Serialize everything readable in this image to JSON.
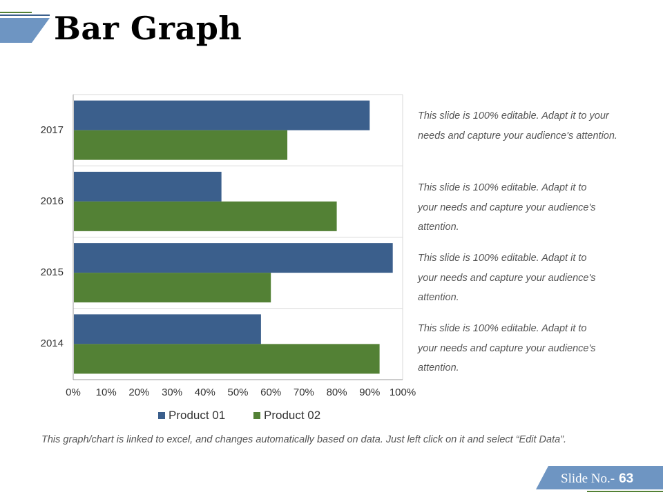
{
  "title": "Bar Graph",
  "colors": {
    "product01": "#3b5f8c",
    "product02": "#538135",
    "accent_bar": "#6e95c2"
  },
  "chart_data": {
    "type": "bar",
    "orientation": "horizontal",
    "categories": [
      "2014",
      "2015",
      "2016",
      "2017"
    ],
    "series": [
      {
        "name": "Product 01",
        "values": [
          57,
          97,
          45,
          90
        ]
      },
      {
        "name": "Product 02",
        "values": [
          93,
          60,
          80,
          65
        ]
      }
    ],
    "xlim": [
      0,
      100
    ],
    "xticks": [
      "0%",
      "10%",
      "20%",
      "30%",
      "40%",
      "50%",
      "60%",
      "70%",
      "80%",
      "90%",
      "100%"
    ],
    "legend": "bottom"
  },
  "descriptions": [
    {
      "lines": [
        "This slide is 100% editable. Adapt it to your",
        "needs and capture your audience's attention."
      ]
    },
    {
      "lines": [
        "This slide is 100% editable. Adapt it to",
        "your needs and capture your audience's",
        "attention."
      ]
    },
    {
      "lines": [
        "This slide is 100% editable. Adapt it to",
        "your needs and capture your audience's",
        "attention."
      ]
    },
    {
      "lines": [
        "This slide is 100% editable. Adapt it to",
        "your needs and capture your audience's",
        "attention."
      ]
    }
  ],
  "footnote": "This graph/chart is linked to excel, and changes automatically based on data. Just left click on it and select “Edit Data”.",
  "slide_label": "Slide No.-",
  "slide_number": "63"
}
